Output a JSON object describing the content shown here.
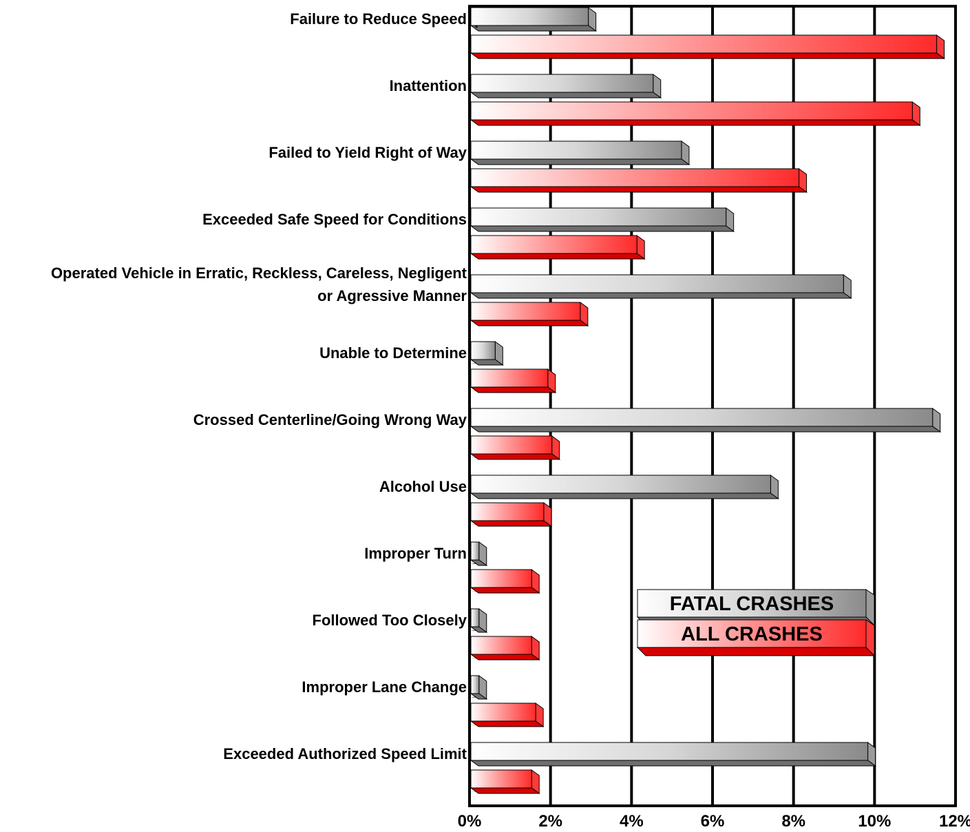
{
  "chart_data": {
    "type": "bar",
    "orientation": "horizontal",
    "categories": [
      [
        "Failure to Reduce Speed"
      ],
      [
        "Inattention"
      ],
      [
        "Failed to Yield Right of Way"
      ],
      [
        "Exceeded Safe Speed for Conditions"
      ],
      [
        "Operated Vehicle in Erratic, Reckless, Careless, Negligent",
        "or Agressive Manner"
      ],
      [
        "Unable to Determine"
      ],
      [
        "Crossed Centerline/Going Wrong Way"
      ],
      [
        "Alcohol Use"
      ],
      [
        "Improper Turn"
      ],
      [
        "Followed Too Closely"
      ],
      [
        "Improper Lane Change"
      ],
      [
        "Exceeded Authorized Speed Limit"
      ]
    ],
    "series": [
      {
        "name": "FATAL CRASHES",
        "color": "#9a9a9a",
        "values": [
          2.9,
          4.5,
          5.2,
          6.3,
          9.2,
          0.6,
          11.4,
          7.4,
          0.2,
          0.2,
          0.2,
          9.8
        ]
      },
      {
        "name": "ALL CRASHES",
        "color": "#ff2020",
        "values": [
          11.5,
          10.9,
          8.1,
          4.1,
          2.7,
          1.9,
          2.0,
          1.8,
          1.5,
          1.5,
          1.6,
          1.5
        ]
      }
    ],
    "xlim": [
      0,
      12
    ],
    "xticks": [
      "0%",
      "2%",
      "4%",
      "6%",
      "8%",
      "10%",
      "12%"
    ],
    "grid": true,
    "legend": "inside-lower-right",
    "annotation": "."
  }
}
